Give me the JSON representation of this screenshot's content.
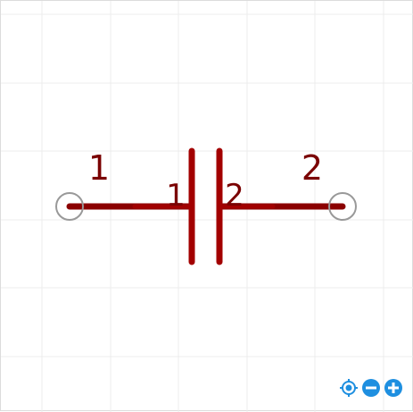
{
  "diagram": {
    "component": "capacitor",
    "pins": [
      {
        "id": "pin-1",
        "pin_number": "1",
        "pad_number": "1"
      },
      {
        "id": "pin-2",
        "pin_number": "2",
        "pad_number": "2"
      }
    ],
    "colors": {
      "grid": "#ececec",
      "wire": "#8b0000",
      "plate": "#a30000",
      "text": "#7a0000",
      "terminal": "#999999",
      "controls": "#1e8fe0"
    }
  },
  "controls": {
    "icons": [
      "locate-icon",
      "zoom-out-icon",
      "zoom-in-icon"
    ]
  }
}
